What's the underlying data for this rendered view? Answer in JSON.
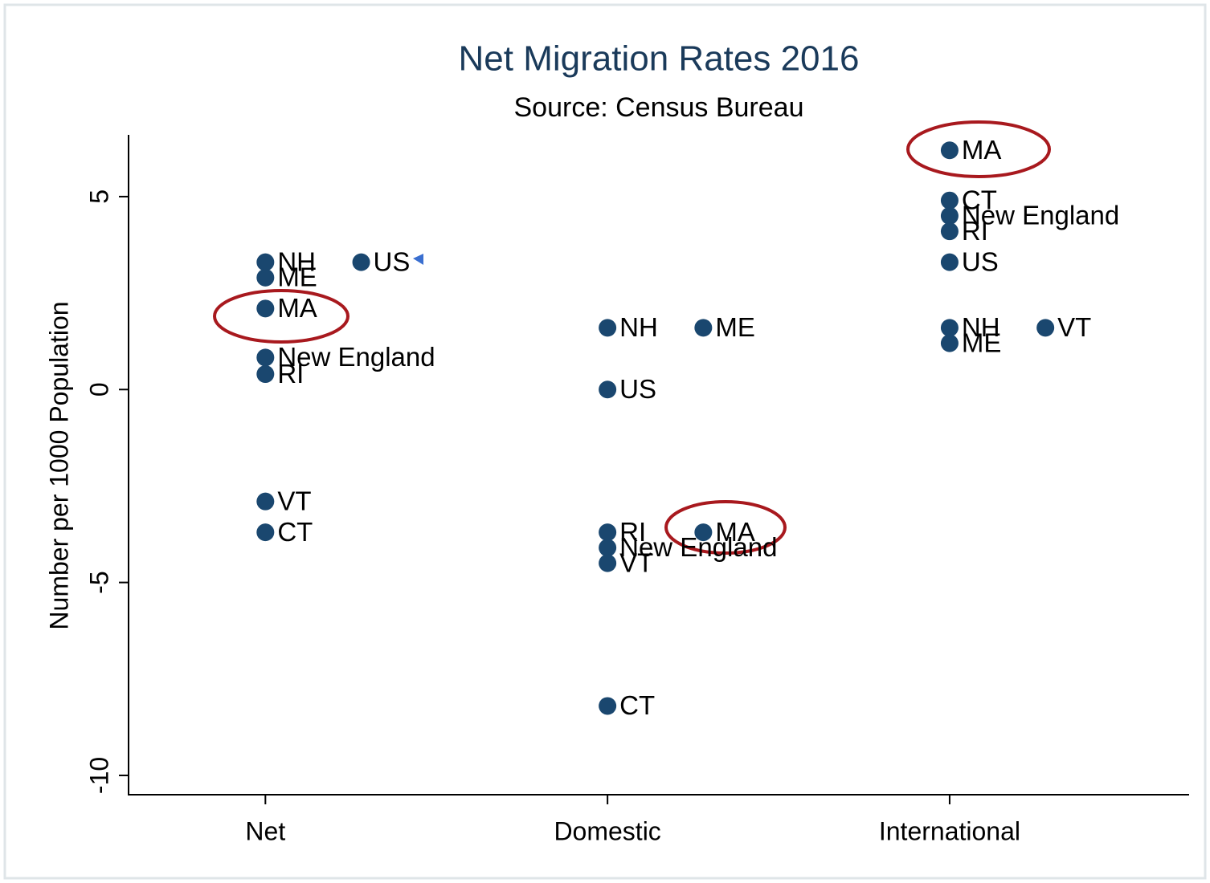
{
  "chart_data": {
    "type": "scatter",
    "title": "Net Migration Rates 2016",
    "subtitle": "Source: Census Bureau",
    "y_label": "Number per 1000 Population",
    "color": "#1a476f",
    "x": [
      1,
      1,
      1,
      1,
      1,
      1,
      1,
      1.28,
      2,
      2.28,
      2,
      2,
      2.28,
      2,
      2,
      2,
      3,
      3,
      3,
      3,
      3,
      3,
      3.28,
      3
    ],
    "values": [
      3.3,
      2.9,
      2.1,
      0.83,
      0.4,
      -2.9,
      -3.7,
      3.3,
      1.6,
      1.6,
      0,
      -3.7,
      -3.7,
      -4.1,
      -4.5,
      -8.2,
      6.2,
      4.9,
      4.5,
      4.1,
      3.3,
      1.6,
      1.6,
      1.2
    ],
    "point_labels": [
      "NH",
      "ME",
      "MA",
      "New England",
      "RI",
      "VT",
      "CT",
      "US",
      "NH",
      "ME",
      "US",
      "RI",
      "MA",
      "New England",
      "VT",
      "CT",
      "MA",
      "CT",
      "New England",
      "RI",
      "US",
      "NH",
      "VT",
      "ME"
    ],
    "xlim": [
      0.6,
      3.7
    ],
    "xticks": [
      {
        "value": 1,
        "label": "Net"
      },
      {
        "value": 2,
        "label": "Domestic"
      },
      {
        "value": 3,
        "label": "International"
      }
    ],
    "ylim": [
      -10.5,
      6.6
    ],
    "yticks": [
      -10,
      -5,
      0,
      5
    ],
    "grid": false
  }
}
